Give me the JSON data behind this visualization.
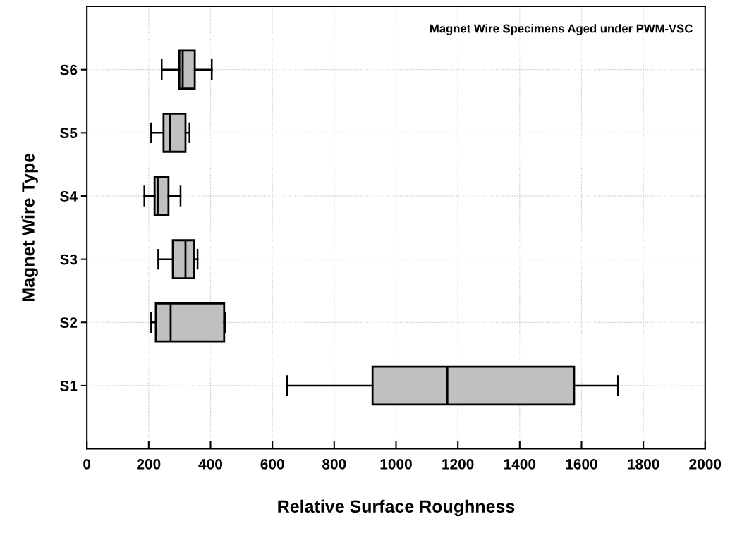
{
  "chart_data": {
    "type": "box",
    "orientation": "horizontal",
    "title": "Magnet Wire Specimens Aged under PWM-VSC",
    "xlabel": "Relative Surface Roughness",
    "ylabel": "Magnet Wire Type",
    "categories": [
      "S6",
      "S5",
      "S4",
      "S3",
      "S2",
      "S1"
    ],
    "color": "#c0c0c0",
    "boxes": [
      {
        "low": 242,
        "q1": 299,
        "median": 310,
        "q3": 349,
        "high": 404
      },
      {
        "low": 208,
        "q1": 248,
        "median": 269,
        "q3": 319,
        "high": 332
      },
      {
        "low": 186,
        "q1": 219,
        "median": 229,
        "q3": 264,
        "high": 303
      },
      {
        "low": 231,
        "q1": 278,
        "median": 319,
        "q3": 346,
        "high": 358
      },
      {
        "low": 208,
        "q1": 223,
        "median": 271,
        "q3": 444,
        "high": 448
      },
      {
        "low": 648,
        "q1": 924,
        "median": 1166,
        "q3": 1576,
        "high": 1718
      }
    ],
    "xlim": [
      0,
      2000
    ],
    "xticks": [
      0,
      200,
      400,
      600,
      800,
      1000,
      1200,
      1400,
      1600,
      1800,
      2000
    ],
    "grid": true
  }
}
